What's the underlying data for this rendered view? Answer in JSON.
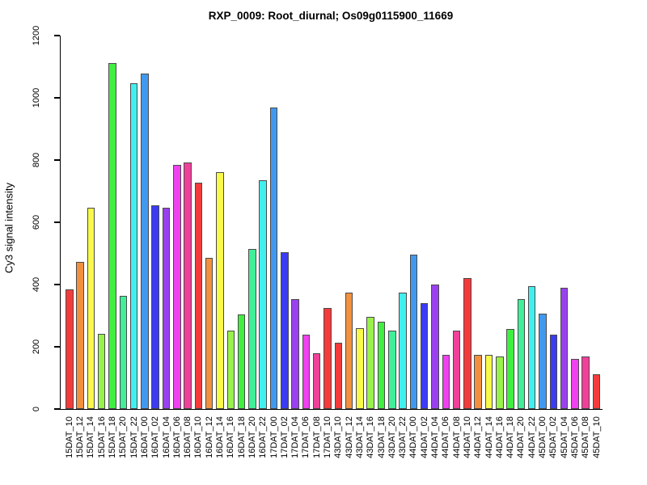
{
  "chart_data": {
    "type": "bar",
    "title": "RXP_0009: Root_diurnal; Os09g0115900_11669",
    "ylabel": "Cy3 signal intensity",
    "xlabel": "",
    "ylim": [
      0,
      1200
    ],
    "yticks": [
      0,
      200,
      400,
      600,
      800,
      1000,
      1200
    ],
    "grid": false,
    "legend": "none",
    "background": "#ffffff",
    "axis_color": "#000000",
    "bar_border_color": "#4a4a4a",
    "categories": [
      "15DAT_10",
      "15DAT_12",
      "15DAT_14",
      "15DAT_16",
      "15DAT_18",
      "15DAT_20",
      "15DAT_22",
      "16DAT_00",
      "16DAT_02",
      "16DAT_04",
      "16DAT_06",
      "16DAT_08",
      "16DAT_10",
      "16DAT_12",
      "16DAT_14",
      "16DAT_16",
      "16DAT_18",
      "16DAT_20",
      "16DAT_22",
      "17DAT_00",
      "17DAT_02",
      "17DAT_04",
      "17DAT_06",
      "17DAT_08",
      "17DAT_10",
      "43DAT_10",
      "43DAT_12",
      "43DAT_14",
      "43DAT_16",
      "43DAT_18",
      "43DAT_20",
      "43DAT_22",
      "44DAT_00",
      "44DAT_02",
      "44DAT_04",
      "44DAT_06",
      "44DAT_08",
      "44DAT_10",
      "44DAT_12",
      "44DAT_14",
      "44DAT_16",
      "44DAT_18",
      "44DAT_20",
      "44DAT_22",
      "45DAT_00",
      "45DAT_02",
      "45DAT_04",
      "45DAT_06",
      "45DAT_08",
      "45DAT_10"
    ],
    "values": [
      385,
      473,
      648,
      242,
      1112,
      364,
      1047,
      1077,
      655,
      648,
      785,
      793,
      728,
      486,
      762,
      252,
      304,
      514,
      735,
      970,
      503,
      352,
      239,
      180,
      324,
      214,
      373,
      260,
      295,
      280,
      252,
      373,
      495,
      341,
      399,
      174,
      253,
      421,
      174,
      174,
      170,
      257,
      354,
      395,
      306,
      239,
      389,
      162,
      168,
      112
    ],
    "colors": [
      "#F43B3B",
      "#F1913F",
      "#F9F94B",
      "#99F14B",
      "#41EF41",
      "#41EF99",
      "#41EFEF",
      "#4199EF",
      "#3B3BF4",
      "#9941EF",
      "#EF41EF",
      "#EF4199",
      "#F43B3B",
      "#F1913F",
      "#F9F94B",
      "#99F14B",
      "#41EF41",
      "#41EF99",
      "#41EFEF",
      "#4199EF",
      "#3B3BF4",
      "#9941EF",
      "#EF41EF",
      "#EF4199",
      "#F43B3B",
      "#F43B3B",
      "#F1913F",
      "#F9F94B",
      "#99F14B",
      "#41EF41",
      "#41EF99",
      "#41EFEF",
      "#4199EF",
      "#3B3BF4",
      "#9941EF",
      "#EF41EF",
      "#EF4199",
      "#F43B3B",
      "#F1913F",
      "#F9F94B",
      "#99F14B",
      "#41EF41",
      "#41EF99",
      "#41EFEF",
      "#4199EF",
      "#3B3BF4",
      "#9941EF",
      "#EF41EF",
      "#EF4199",
      "#F43B3B"
    ]
  }
}
